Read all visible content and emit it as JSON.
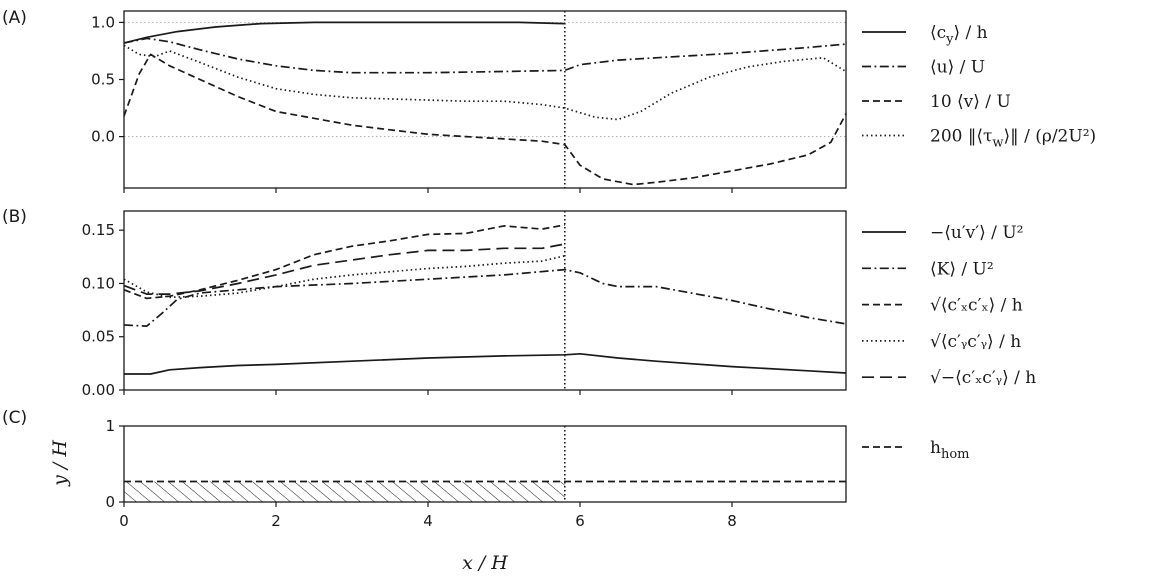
{
  "panels": {
    "A": "(A)",
    "B": "(B)",
    "C": "(C)"
  },
  "axes": {
    "xlabel": "x / H",
    "ylabel_C": "y / H"
  },
  "chart_data": [
    {
      "panel": "A",
      "type": "line",
      "xlim": [
        0,
        9.5
      ],
      "ylim": [
        -0.45,
        1.1
      ],
      "xticks": [
        0,
        2,
        4,
        6,
        8
      ],
      "yticks": [
        0.0,
        0.5,
        1.0
      ],
      "ytick_labels": [
        "0.0",
        "0.5",
        "1.0"
      ],
      "reference_lines": [
        {
          "y": 1.0,
          "style": "dotted"
        },
        {
          "y": 0.0,
          "style": "dotted"
        }
      ],
      "vline_x": 5.8,
      "legend_position": "right",
      "series": [
        {
          "name": "⟨c_y⟩ / h",
          "style": "solid",
          "x": [
            0,
            0.3,
            0.7,
            1.2,
            1.8,
            2.5,
            3.5,
            4.5,
            5.2,
            5.8
          ],
          "y": [
            0.82,
            0.87,
            0.92,
            0.96,
            0.99,
            1.0,
            1.0,
            1.0,
            1.0,
            0.99
          ]
        },
        {
          "name": "⟨u⟩ / U",
          "style": "dashdot",
          "x": [
            0,
            0.3,
            0.6,
            1.0,
            1.5,
            2.0,
            2.5,
            3.0,
            4.0,
            5.0,
            5.8,
            6.0,
            6.5,
            7.0,
            8.0,
            9.0,
            9.5
          ],
          "y": [
            0.82,
            0.86,
            0.83,
            0.76,
            0.68,
            0.62,
            0.58,
            0.56,
            0.56,
            0.57,
            0.58,
            0.63,
            0.67,
            0.69,
            0.73,
            0.78,
            0.81
          ]
        },
        {
          "name": "10 ⟨v⟩ / U",
          "style": "dashed",
          "x": [
            0,
            0.2,
            0.35,
            0.6,
            1.0,
            1.5,
            2.0,
            2.5,
            3.0,
            3.5,
            4.0,
            4.5,
            5.0,
            5.5,
            5.8,
            6.0,
            6.3,
            6.7,
            7.0,
            7.5,
            8.0,
            8.5,
            9.0,
            9.3,
            9.5
          ],
          "y": [
            0.18,
            0.55,
            0.72,
            0.62,
            0.5,
            0.35,
            0.22,
            0.16,
            0.1,
            0.06,
            0.02,
            0.0,
            -0.02,
            -0.04,
            -0.07,
            -0.25,
            -0.37,
            -0.42,
            -0.4,
            -0.36,
            -0.3,
            -0.24,
            -0.16,
            -0.05,
            0.2
          ]
        },
        {
          "name": "200 ‖⟨τ_w⟩‖ / (ρ/2U²)",
          "style": "dotted",
          "x": [
            0,
            0.2,
            0.4,
            0.6,
            1.0,
            1.5,
            2.0,
            2.5,
            3.0,
            3.5,
            4.0,
            4.5,
            5.0,
            5.5,
            5.8,
            6.2,
            6.5,
            6.8,
            7.2,
            7.7,
            8.2,
            8.7,
            9.2,
            9.5
          ],
          "y": [
            0.8,
            0.72,
            0.7,
            0.75,
            0.65,
            0.52,
            0.42,
            0.37,
            0.34,
            0.33,
            0.32,
            0.31,
            0.31,
            0.28,
            0.25,
            0.17,
            0.15,
            0.22,
            0.38,
            0.52,
            0.61,
            0.66,
            0.69,
            0.57
          ]
        }
      ]
    },
    {
      "panel": "B",
      "type": "line",
      "xlim": [
        0,
        9.5
      ],
      "ylim": [
        0.0,
        0.168
      ],
      "xticks": [
        0,
        2,
        4,
        6,
        8
      ],
      "yticks": [
        0.0,
        0.05,
        0.1,
        0.15
      ],
      "ytick_labels": [
        "0.00",
        "0.05",
        "0.10",
        "0.15"
      ],
      "vline_x": 5.8,
      "legend_position": "right",
      "series": [
        {
          "name": "−⟨u′v′⟩ / U²",
          "style": "solid",
          "x": [
            0,
            0.35,
            0.6,
            1.0,
            1.5,
            2.0,
            3.0,
            4.0,
            5.0,
            5.8,
            6.0,
            6.5,
            7.0,
            8.0,
            9.0,
            9.5
          ],
          "y": [
            0.015,
            0.015,
            0.019,
            0.021,
            0.023,
            0.024,
            0.027,
            0.03,
            0.032,
            0.033,
            0.034,
            0.03,
            0.027,
            0.022,
            0.018,
            0.016
          ]
        },
        {
          "name": "⟨K⟩ / U²",
          "style": "dashdot",
          "x": [
            0,
            0.3,
            0.5,
            0.7,
            1.0,
            1.5,
            2.0,
            3.0,
            4.0,
            5.0,
            5.8,
            6.0,
            6.3,
            6.5,
            7.0,
            8.0,
            9.0,
            9.5
          ],
          "y": [
            0.061,
            0.06,
            0.072,
            0.085,
            0.091,
            0.094,
            0.097,
            0.1,
            0.104,
            0.108,
            0.113,
            0.11,
            0.1,
            0.097,
            0.097,
            0.084,
            0.068,
            0.062
          ]
        },
        {
          "name": "√⟨c′ₓc′ₓ⟩ / h",
          "style": "dashed",
          "x": [
            0,
            0.3,
            0.6,
            1.0,
            1.5,
            2.0,
            2.5,
            3.0,
            3.5,
            4.0,
            4.5,
            5.0,
            5.5,
            5.8
          ],
          "y": [
            0.094,
            0.086,
            0.088,
            0.094,
            0.103,
            0.113,
            0.127,
            0.135,
            0.14,
            0.146,
            0.147,
            0.154,
            0.151,
            0.155
          ]
        },
        {
          "name": "√⟨c′ᵧc′ᵧ⟩ / h",
          "style": "dotted",
          "x": [
            0,
            0.3,
            0.6,
            1.0,
            1.5,
            2.0,
            2.5,
            3.0,
            3.5,
            4.0,
            4.5,
            5.0,
            5.5,
            5.8
          ],
          "y": [
            0.104,
            0.092,
            0.087,
            0.088,
            0.091,
            0.097,
            0.104,
            0.108,
            0.111,
            0.114,
            0.116,
            0.119,
            0.121,
            0.126
          ]
        },
        {
          "name": "√−⟨c′ₓc′ᵧ⟩ / h",
          "style": "longdash",
          "x": [
            0,
            0.3,
            0.6,
            1.0,
            1.5,
            2.0,
            2.5,
            3.0,
            3.5,
            4.0,
            4.5,
            5.0,
            5.5,
            5.8
          ],
          "y": [
            0.098,
            0.09,
            0.09,
            0.093,
            0.1,
            0.108,
            0.117,
            0.122,
            0.127,
            0.131,
            0.131,
            0.133,
            0.133,
            0.137
          ]
        }
      ]
    },
    {
      "panel": "C",
      "type": "line",
      "xlim": [
        0,
        9.5
      ],
      "ylim": [
        0,
        1
      ],
      "xticks": [
        0,
        2,
        4,
        6,
        8
      ],
      "xtick_labels": [
        "0",
        "2",
        "4",
        "6",
        "8"
      ],
      "yticks": [
        0,
        1
      ],
      "ytick_labels": [
        "0",
        "1"
      ],
      "vline_x": 5.8,
      "hatched_region": {
        "x": [
          0,
          5.8
        ],
        "y": [
          0,
          0.27
        ]
      },
      "legend_position": "right",
      "series": [
        {
          "name": "h_hom",
          "style": "dashed",
          "x": [
            0,
            9.5
          ],
          "y": [
            0.27,
            0.27
          ]
        }
      ]
    }
  ],
  "legends": {
    "A": [
      {
        "main": "⟨c",
        "sub": "y",
        "rest": "⟩ / h"
      },
      {
        "main": "⟨u⟩ / U",
        "sub": "",
        "rest": ""
      },
      {
        "main": "10 ⟨v⟩ / U",
        "sub": "",
        "rest": ""
      },
      {
        "main": "200 ‖⟨τ",
        "sub": "w",
        "rest": "⟩‖ / (ρ/2U²)"
      }
    ],
    "B": [
      {
        "main": "−⟨u′v′⟩ / U²",
        "sub": "",
        "rest": ""
      },
      {
        "main": "⟨K⟩ / U²",
        "sub": "",
        "rest": ""
      },
      {
        "main": "√⟨c′ₓc′ₓ⟩ / h",
        "sub": "",
        "rest": ""
      },
      {
        "main": "√⟨c′ᵧc′ᵧ⟩ / h",
        "sub": "",
        "rest": ""
      },
      {
        "main": "√−⟨c′ₓc′ᵧ⟩ / h",
        "sub": "",
        "rest": ""
      }
    ],
    "C": [
      {
        "main": "h",
        "sub": "hom",
        "rest": ""
      }
    ]
  }
}
